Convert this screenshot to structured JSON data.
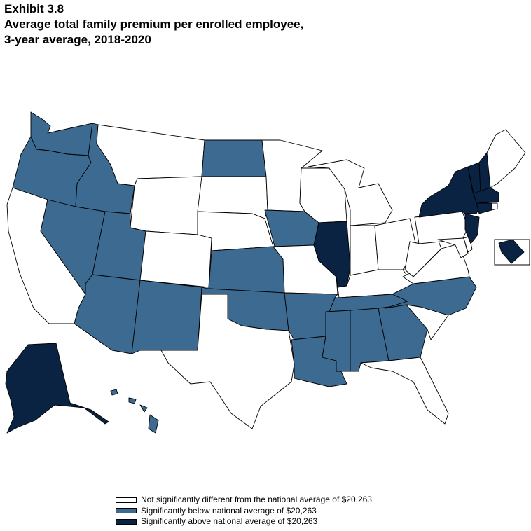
{
  "header": {
    "exhibit": "Exhibit 3.8",
    "title_line1": "Average total family premium per enrolled employee,",
    "title_line2": "3-year average, 2018-2020"
  },
  "colors": {
    "not_significant": "#ffffff",
    "below": "#3d6a90",
    "above": "#0a2342"
  },
  "legend": {
    "items": [
      {
        "key": "not_significant",
        "label": "Not significantly different from the national average of  $20,263"
      },
      {
        "key": "below",
        "label": "Significantly below national average of  $20,263"
      },
      {
        "key": "above",
        "label": "Significantly above national average of  $20,263"
      }
    ]
  },
  "states": {
    "WA": "below",
    "OR": "below",
    "ID": "below",
    "NV": "below",
    "UT": "below",
    "AZ": "below",
    "NM": "below",
    "ND": "below",
    "KS": "below",
    "OK": "below",
    "IA": "below",
    "AR": "below",
    "LA": "below",
    "MS": "below",
    "AL": "below",
    "GA": "below",
    "TN": "below",
    "NC": "below",
    "HI": "below",
    "IL": "above",
    "NY": "above",
    "NJ": "above",
    "VT": "above",
    "NH": "above",
    "MA": "above",
    "CT": "above",
    "AK": "above",
    "DC": "above",
    "CA": "not_significant",
    "MT": "not_significant",
    "WY": "not_significant",
    "CO": "not_significant",
    "SD": "not_significant",
    "NE": "not_significant",
    "TX": "not_significant",
    "MN": "not_significant",
    "MO": "not_significant",
    "WI": "not_significant",
    "MI": "not_significant",
    "IN": "not_significant",
    "OH": "not_significant",
    "KY": "not_significant",
    "SC": "not_significant",
    "FL": "not_significant",
    "VA": "not_significant",
    "WV": "not_significant",
    "MD": "not_significant",
    "DE": "not_significant",
    "PA": "not_significant",
    "ME": "not_significant",
    "RI": "not_significant"
  }
}
